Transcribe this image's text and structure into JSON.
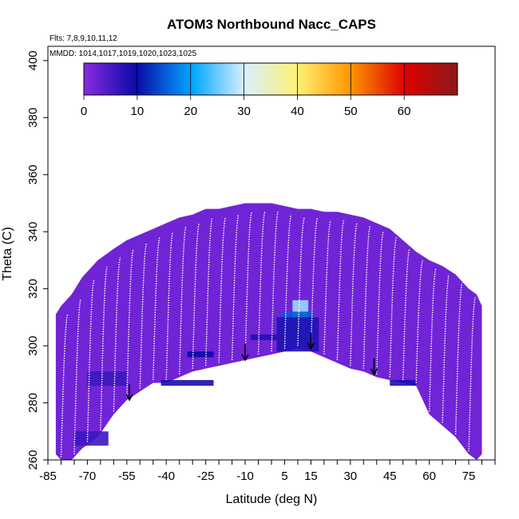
{
  "chart_data": {
    "type": "heatmap",
    "title": "ATOM3 Northbound Nacc_CAPS",
    "notes": [
      "Flts: 7,8,9,10,11,12",
      "MMDD: 1014,1017,1019,1020,1023,1025"
    ],
    "xlabel": "Latitude (deg N)",
    "ylabel": "Theta (C)",
    "xlim": [
      -85,
      85
    ],
    "ylim": [
      260,
      405
    ],
    "x_ticks": [
      "-85",
      "-70",
      "-55",
      "-40",
      "-25",
      "-10",
      "5",
      "15",
      "30",
      "45",
      "60",
      "75"
    ],
    "y_ticks": [
      "260",
      "280",
      "300",
      "320",
      "340",
      "360",
      "380",
      "400"
    ],
    "colorbar": {
      "range": [
        0,
        70
      ],
      "ticks": [
        "0",
        "10",
        "20",
        "30",
        "40",
        "50",
        "60"
      ]
    },
    "background_value": 2,
    "envelope": {
      "lat": [
        -82,
        -80,
        -76,
        -72,
        -66,
        -60,
        -55,
        -50,
        -45,
        -40,
        -35,
        -30,
        -25,
        -20,
        -15,
        -10,
        -5,
        0,
        5,
        10,
        15,
        20,
        25,
        30,
        35,
        40,
        45,
        50,
        55,
        60,
        65,
        70,
        75,
        78,
        80
      ],
      "top": [
        311,
        314,
        318,
        324,
        330,
        334,
        337,
        339,
        341,
        343,
        345,
        346,
        348,
        348,
        349,
        350,
        350,
        350,
        349,
        348,
        348,
        347,
        347,
        346,
        345,
        343,
        341,
        337,
        333,
        330,
        328,
        325,
        320,
        318,
        314
      ],
      "bottom": [
        262,
        260,
        260,
        264,
        268,
        276,
        281,
        284,
        287,
        287,
        289,
        291,
        292,
        293,
        294,
        295,
        296,
        297,
        298,
        299,
        298,
        296,
        294,
        292,
        291,
        289,
        288,
        287,
        286,
        276,
        272,
        268,
        262,
        260,
        262
      ]
    },
    "enhancements": [
      {
        "lat": [
          8,
          14
        ],
        "theta": [
          303,
          316
        ],
        "value": 27
      },
      {
        "lat": [
          4,
          16
        ],
        "theta": [
          300,
          312
        ],
        "value": 15
      },
      {
        "lat": [
          2,
          18
        ],
        "theta": [
          298,
          310
        ],
        "value": 8
      },
      {
        "lat": [
          -32,
          -22
        ],
        "theta": [
          296,
          298
        ],
        "value": 10
      },
      {
        "lat": [
          -8,
          2
        ],
        "theta": [
          302,
          304
        ],
        "value": 8
      },
      {
        "lat": [
          -42,
          -22
        ],
        "theta": [
          286,
          288
        ],
        "value": 9
      },
      {
        "lat": [
          45,
          55
        ],
        "theta": [
          286,
          288
        ],
        "value": 9
      },
      {
        "lat": [
          -75,
          -62
        ],
        "theta": [
          265,
          270
        ],
        "value": 6
      },
      {
        "lat": [
          -70,
          -55
        ],
        "theta": [
          286,
          291
        ],
        "value": 6
      }
    ],
    "arrows_lat": [
      -54,
      -10,
      15,
      39
    ],
    "arrows_theta": [
      281,
      295,
      299,
      290
    ]
  }
}
